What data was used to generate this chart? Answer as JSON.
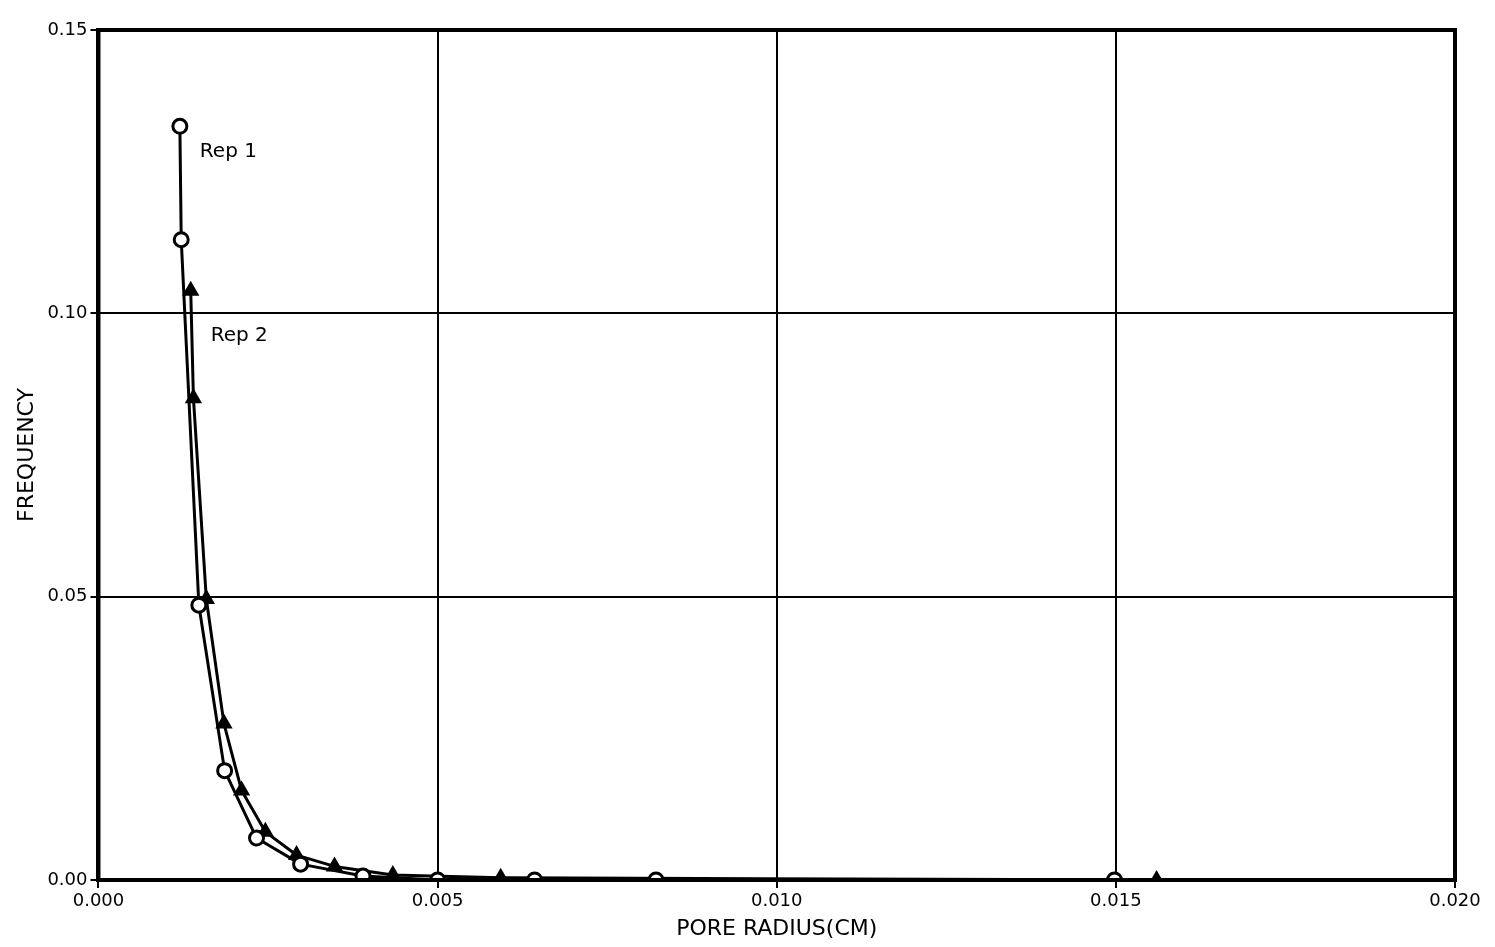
{
  "chart_data": {
    "type": "line",
    "xlabel": "PORE RADIUS(CM)",
    "ylabel": "FREQUENCY",
    "xlim": [
      0,
      0.02
    ],
    "ylim": [
      0,
      0.15
    ],
    "xticks": [
      {
        "value": 0,
        "label": "0.000"
      },
      {
        "value": 0.005,
        "label": "0.005"
      },
      {
        "value": 0.01,
        "label": "0.010"
      },
      {
        "value": 0.015,
        "label": "0.015"
      },
      {
        "value": 0.02,
        "label": "0.020"
      }
    ],
    "yticks": [
      {
        "value": 0,
        "label": "0.00"
      },
      {
        "value": 0.05,
        "label": "0.05"
      },
      {
        "value": 0.1,
        "label": "0.10"
      },
      {
        "value": 0.15,
        "label": "0.15"
      }
    ],
    "grid": true,
    "legend": false,
    "series": [
      {
        "name": "Rep 1",
        "color": "#000000",
        "marker": "circle",
        "x": [
          0.0012,
          0.00122,
          0.00148,
          0.00186,
          0.00233,
          0.00298,
          0.0039,
          0.005,
          0.00643,
          0.00822,
          0.01498
        ],
        "values": [
          0.133,
          0.113,
          0.0485,
          0.0193,
          0.0074,
          0.0028,
          0.0007,
          0,
          0,
          0,
          0
        ]
      },
      {
        "name": "Rep 2",
        "color": "#000000",
        "marker": "triangle",
        "x": [
          0.00136,
          0.0014,
          0.00159,
          0.00185,
          0.00211,
          0.00246,
          0.00292,
          0.00348,
          0.00434,
          0.00593,
          0.0156
        ],
        "values": [
          0.104,
          0.085,
          0.0496,
          0.0276,
          0.0158,
          0.0085,
          0.0044,
          0.0024,
          0.0009,
          0.0004,
          0
        ]
      }
    ]
  }
}
